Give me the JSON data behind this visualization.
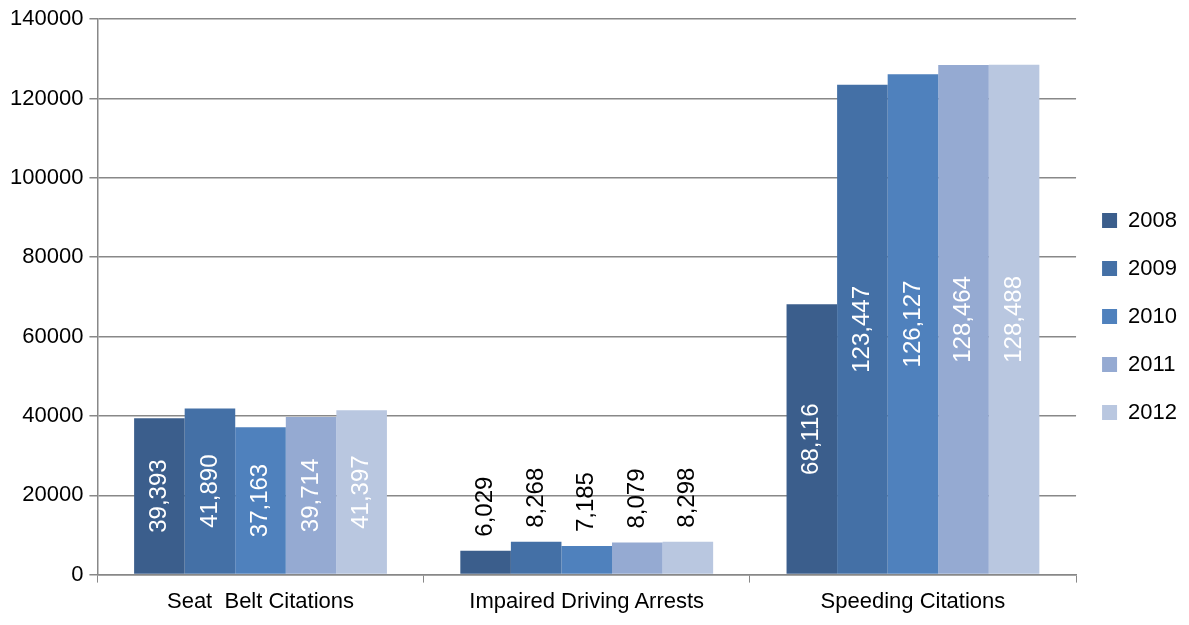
{
  "chart_data": {
    "type": "bar",
    "categories": [
      "Seat  Belt Citations",
      "Impaired Driving Arrests",
      "Speeding Citations"
    ],
    "series": [
      {
        "name": "2008",
        "color": "#3b5e8c",
        "values": [
          39393,
          6029,
          68116
        ],
        "value_labels": [
          "39,393",
          "6,029",
          "68,116"
        ]
      },
      {
        "name": "2009",
        "color": "#4470a6",
        "values": [
          41890,
          8268,
          123447
        ],
        "value_labels": [
          "41,890",
          "8,268",
          "123,447"
        ]
      },
      {
        "name": "2010",
        "color": "#4f81bd",
        "values": [
          37163,
          7185,
          126127
        ],
        "value_labels": [
          "37,163",
          "7,185",
          "126,127"
        ]
      },
      {
        "name": "2011",
        "color": "#95aad2",
        "values": [
          39714,
          8079,
          128464
        ],
        "value_labels": [
          "39,714",
          "8,079",
          "128,464"
        ]
      },
      {
        "name": "2012",
        "color": "#b9c7e0",
        "values": [
          41397,
          8298,
          128488
        ],
        "value_labels": [
          "41,397",
          "8,298",
          "128,488"
        ]
      }
    ],
    "ylim": [
      0,
      140000
    ],
    "yticks": [
      0,
      20000,
      40000,
      60000,
      80000,
      100000,
      120000,
      140000
    ],
    "grid": "y",
    "legend": "right"
  }
}
